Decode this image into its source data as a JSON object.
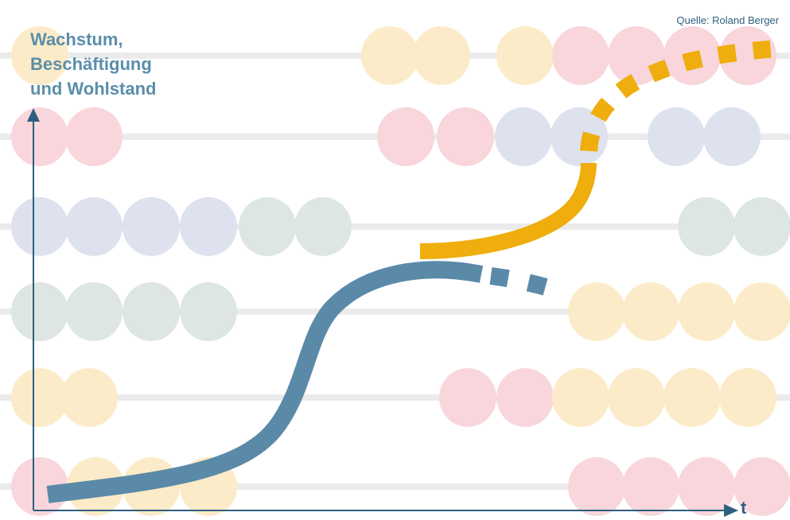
{
  "source_note": "Quelle: Roland Berger",
  "y_axis_title_lines": [
    "Wachstum,",
    "Beschäftigung",
    "und Wohlstand"
  ],
  "x_axis_label": "t",
  "colors": {
    "title_text": "#5a8eaa",
    "axis": "#2f5f7f",
    "curve_current": "#5a8aa8",
    "curve_future": "#efae0e",
    "abacus_rod": "#dddddd",
    "bead_yellow": "#fcebc8",
    "bead_pink": "#f8d6dc",
    "bead_blue": "#dde2ee",
    "bead_green": "#dde6e2"
  },
  "curves": [
    {
      "name": "current-path",
      "style": "solid-then-dashed",
      "color_key": "curve_current"
    },
    {
      "name": "future-path",
      "style": "solid-then-dashed",
      "color_key": "curve_future"
    }
  ]
}
